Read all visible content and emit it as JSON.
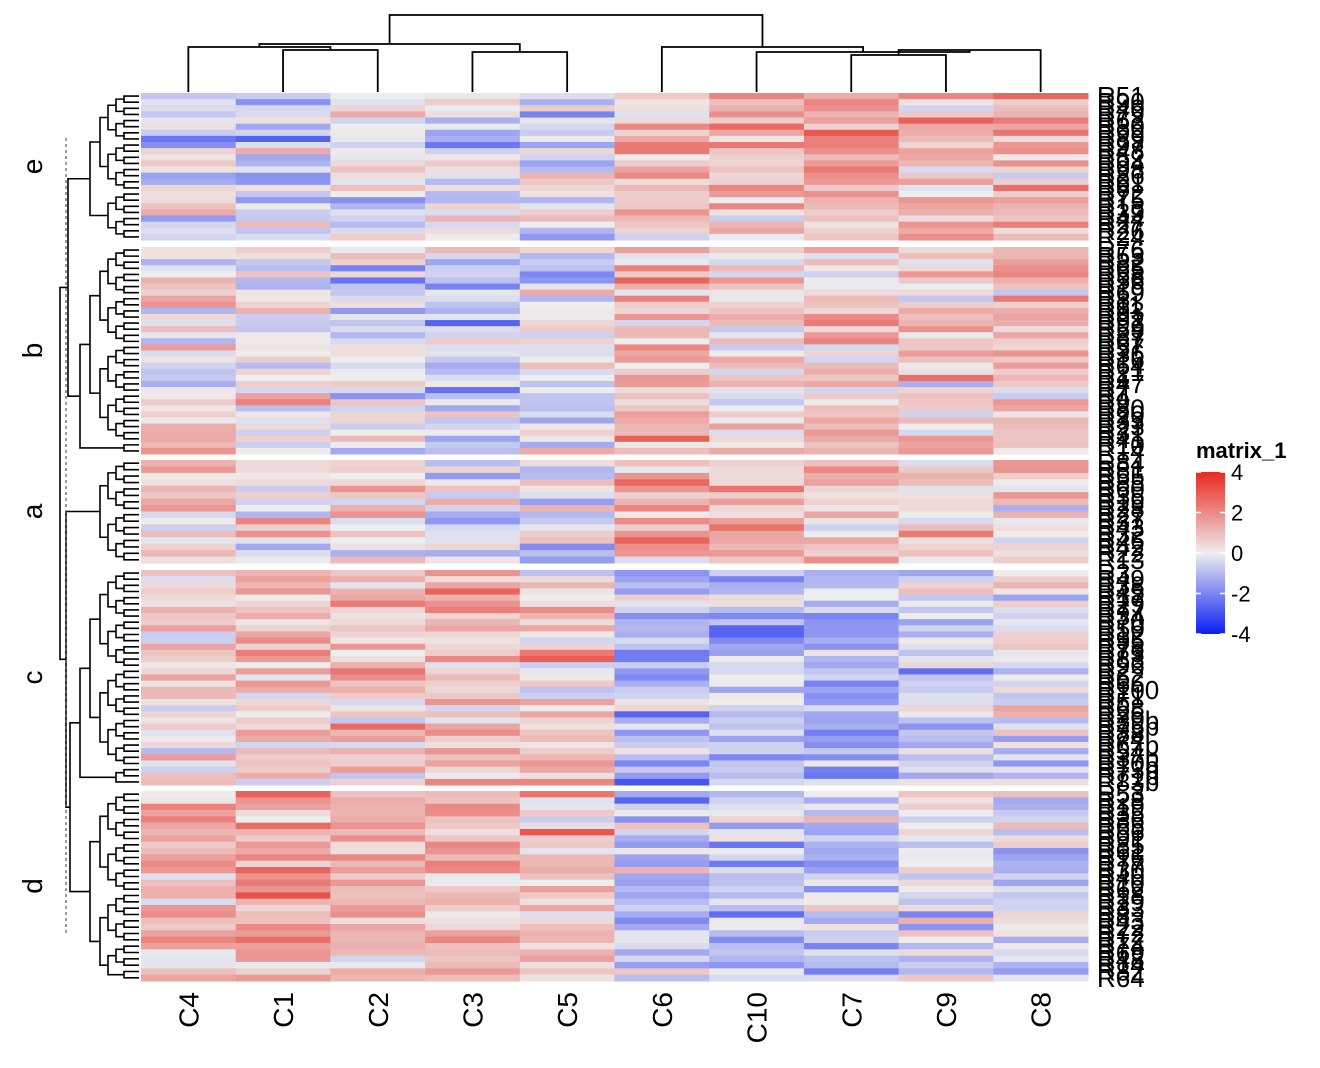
{
  "chart_data": {
    "type": "heatmap",
    "title": "",
    "xlabel": "",
    "ylabel": "",
    "columns": [
      "C4",
      "C1",
      "C2",
      "C3",
      "C5",
      "C6",
      "C10",
      "C7",
      "C9",
      "C8"
    ],
    "row_groups": [
      {
        "label": "e",
        "n_rows": 24,
        "row_labels": [
          "R51",
          "R90",
          "R40",
          "R79",
          "R63",
          "R30",
          "R99",
          "R89",
          "R97",
          "R48",
          "R52",
          "R94",
          "R98",
          "R86",
          "R61",
          "R6",
          "R72",
          "R75",
          "R18",
          "R39",
          "R44",
          "R27",
          "R26",
          "R24"
        ]
      },
      {
        "label": "b",
        "n_rows": 34,
        "row_labels": [
          "R76",
          "R53",
          "R82",
          "R65",
          "R58",
          "R56",
          "R15",
          "R69",
          "R8",
          "R11",
          "R93",
          "R91",
          "R92",
          "R59",
          "R87",
          "R67",
          "R57",
          "R36",
          "R16",
          "R64",
          "R21",
          "R1",
          "R47",
          "R7",
          "R4",
          "R9",
          "R80",
          "R20",
          "R33",
          "R23",
          "R31",
          "R41",
          "R10",
          "R14"
        ]
      },
      {
        "label": "a",
        "n_rows": 16,
        "row_labels": [
          "R84",
          "R81",
          "R55",
          "R85",
          "R60",
          "R35",
          "R19",
          "R28",
          "R27",
          "R37",
          "R43",
          "R32",
          "R46",
          "R42",
          "R22",
          "R13"
        ]
      },
      {
        "label": "c",
        "n_rows": 35,
        "row_labels": [
          "R3",
          "R49",
          "R38",
          "R45",
          "R17",
          "R29",
          "R77",
          "R34",
          "R70",
          "R50",
          "R12",
          "R95",
          "R78",
          "R73",
          "R83",
          "R96",
          "R2",
          "R62",
          "R66",
          "R100",
          "R71",
          "R5",
          "R68",
          "R25",
          "R39b",
          "R75b",
          "R88",
          "R74",
          "R67b",
          "R54",
          "R37b",
          "R105",
          "R73b",
          "R71b",
          "R83b"
        ]
      },
      {
        "label": "d",
        "n_rows": 30,
        "row_labels": [
          "R53",
          "R28",
          "R19",
          "R35",
          "R36",
          "R65",
          "R56",
          "R91",
          "R85",
          "R61",
          "R16",
          "R77",
          "R30",
          "R40",
          "R10",
          "R62",
          "R18",
          "R29",
          "R33",
          "R8",
          "R43",
          "R22",
          "R72",
          "R12",
          "R74",
          "R69",
          "R48",
          "R14",
          "R82",
          "R64"
        ]
      }
    ],
    "column_block_means": [
      {
        "group": "e",
        "means": [
          -0.3,
          -0.6,
          -0.5,
          -0.4,
          -0.2,
          0.8,
          1.2,
          1.4,
          0.9,
          1.3
        ]
      },
      {
        "group": "b",
        "means": [
          0.2,
          0.1,
          -0.3,
          -0.8,
          -0.5,
          0.9,
          0.6,
          0.8,
          0.7,
          0.9
        ]
      },
      {
        "group": "a",
        "means": [
          0.7,
          0.3,
          0.4,
          -0.1,
          -0.3,
          1.3,
          1.1,
          1.0,
          0.5,
          0.4
        ]
      },
      {
        "group": "c",
        "means": [
          0.6,
          0.8,
          1.1,
          0.8,
          0.7,
          -1.1,
          -0.9,
          -1.0,
          -0.6,
          -0.2
        ]
      },
      {
        "group": "d",
        "means": [
          0.9,
          1.6,
          1.1,
          1.0,
          1.0,
          -0.9,
          -0.8,
          -0.7,
          -0.4,
          -0.3
        ]
      }
    ],
    "legend": {
      "title": "matrix_1",
      "ticks": [
        "4",
        "2",
        "0",
        "-2",
        "-4"
      ],
      "colors": {
        "high": "#e8281f",
        "mid": "#eeeeee",
        "low": "#0a1ef5"
      },
      "range": [
        -4,
        4
      ],
      "placement": "right"
    }
  }
}
